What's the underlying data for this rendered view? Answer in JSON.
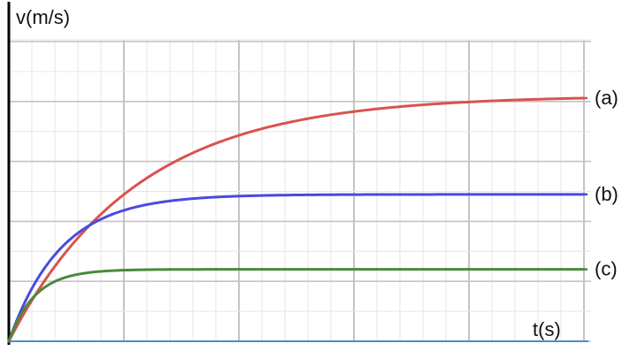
{
  "chart_data": {
    "type": "line",
    "title": "",
    "ylabel": "v(m/s)",
    "xlabel": "t(s)",
    "xlim": [
      0,
      10
    ],
    "ylim": [
      0,
      10
    ],
    "grid": true,
    "series": [
      {
        "name": "(a)",
        "color": "#d9534f",
        "terminal_value": 8.2,
        "time_constant": 2.2
      },
      {
        "name": "(b)",
        "color": "#4a4ae0",
        "terminal_value": 4.9,
        "time_constant": 0.9
      },
      {
        "name": "(c)",
        "color": "#4a8a3a",
        "terminal_value": 2.4,
        "time_constant": 0.45
      }
    ],
    "colors": {
      "axis": "#000000",
      "baseline": "#4a90c8",
      "grid_major": "#c4c4c4",
      "grid_minor": "#e6e6e6"
    }
  }
}
